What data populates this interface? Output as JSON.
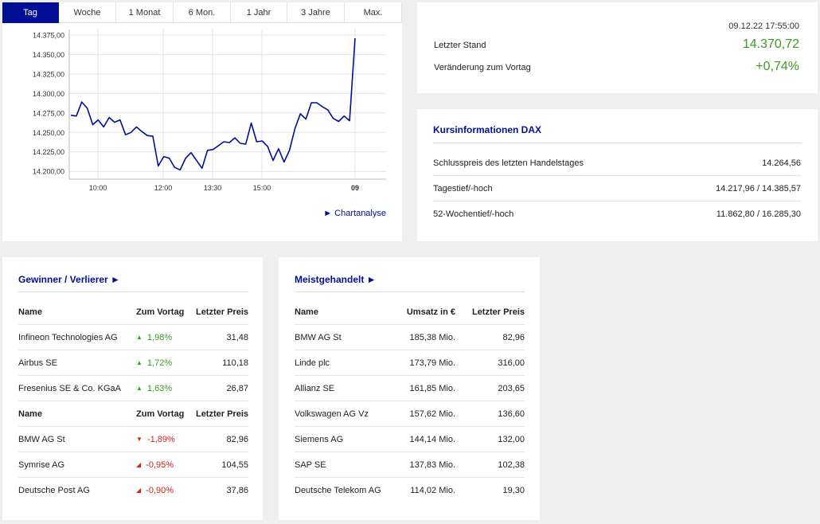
{
  "tabs": [
    "Tag",
    "Woche",
    "1 Monat",
    "6 Mon.",
    "1 Jahr",
    "3 Jahre",
    "Max."
  ],
  "chart_link": "► Chartanalyse",
  "chart_data": {
    "type": "line",
    "x_ticks": [
      "10:00",
      "12:00",
      "13:30",
      "15:00",
      "09"
    ],
    "y_ticks": [
      "14.200,00",
      "14.225,00",
      "14.250,00",
      "14.275,00",
      "14.300,00",
      "14.325,00",
      "14.350,00",
      "14.375,00"
    ],
    "ylim": [
      14190,
      14382
    ],
    "values": [
      14272,
      14271,
      14289,
      14281,
      14260,
      14266,
      14257,
      14269,
      14263,
      14266,
      14247,
      14250,
      14257,
      14251,
      14246,
      14245,
      14207,
      14219,
      14217,
      14205,
      14202,
      14217,
      14224,
      14214,
      14204,
      14227,
      14228,
      14233,
      14238,
      14237,
      14243,
      14236,
      14235,
      14262,
      14238,
      14239,
      14232,
      14214,
      14229,
      14212,
      14227,
      14255,
      14274,
      14267,
      14288,
      14288,
      14283,
      14279,
      14268,
      14264,
      14271,
      14265,
      14370.72
    ],
    "series_color": "#000f96",
    "grid": true
  },
  "stand": {
    "date": "09.12.22 17:55:00",
    "last_label": "Letzter Stand",
    "last_value": "14.370,72",
    "change_label": "Veränderung zum Vortag",
    "change_value": "+0,74%"
  },
  "info": {
    "title": "Kursinformationen DAX",
    "rows": [
      {
        "label": "Schlusspreis des letzten Handelstages",
        "value": "14.264,56"
      },
      {
        "label": "Tagestief/-hoch",
        "value": "14.217,96 / 14.385,57"
      },
      {
        "label": "52-Wochentief/-hoch",
        "value": "11.862,80 / 16.285,30"
      }
    ]
  },
  "gainers": {
    "title": "Gewinner / Verlierer ►",
    "headers": [
      "Name",
      "Zum Vortag",
      "Letzter Preis"
    ],
    "winners": [
      {
        "name": "Infineon Technologies AG",
        "change": "1,98%",
        "price": "31,48"
      },
      {
        "name": "Airbus SE",
        "change": "1,72%",
        "price": "110,18"
      },
      {
        "name": "Fresenius SE & Co. KGaA",
        "change": "1,63%",
        "price": "26,87"
      }
    ],
    "losers": [
      {
        "name": "BMW AG St",
        "change": "-1,89%",
        "price": "82,96"
      },
      {
        "name": "Symrise AG",
        "change": "-0,95%",
        "price": "104,55"
      },
      {
        "name": "Deutsche Post AG",
        "change": "-0,90%",
        "price": "37,86"
      }
    ]
  },
  "most_traded": {
    "title": "Meistgehandelt ►",
    "headers": [
      "Name",
      "Umsatz in €",
      "Letzter Preis"
    ],
    "rows": [
      {
        "name": "BMW AG St",
        "volume": "185,38 Mio.",
        "price": "82,96"
      },
      {
        "name": "Linde plc",
        "volume": "173,79 Mio.",
        "price": "316,00"
      },
      {
        "name": "Allianz SE",
        "volume": "161,85 Mio.",
        "price": "203,65"
      },
      {
        "name": "Volkswagen AG Vz",
        "volume": "157,62 Mio.",
        "price": "136,60"
      },
      {
        "name": "Siemens AG",
        "volume": "144,14 Mio.",
        "price": "132,00"
      },
      {
        "name": "SAP SE",
        "volume": "137,83 Mio.",
        "price": "102,38"
      },
      {
        "name": "Deutsche Telekom AG",
        "volume": "114,02 Mio.",
        "price": "19,30"
      }
    ]
  }
}
